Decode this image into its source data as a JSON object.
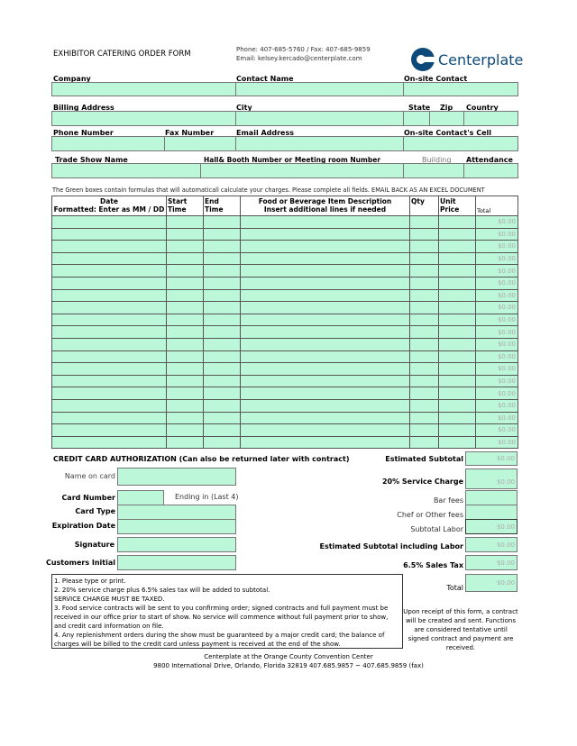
{
  "header": {
    "title": "EXHIBITOR CATERING ORDER FORM",
    "phone": "Phone: 407-685-5760 / Fax: 407-685-9859",
    "email": "Email: kelsey.kercado@centerplate.com",
    "logo_text": "Centerplate",
    "logo_color": "#0d4a7a"
  },
  "fields": {
    "company": "Company",
    "contact_name": "Contact Name",
    "onsite_contact": "On-site Contact",
    "billing_address": "Billing Address",
    "city": "City",
    "state": "State",
    "zip": "Zip",
    "country": "Country",
    "phone": "Phone Number",
    "fax": "Fax Number",
    "email": "Email Address",
    "onsite_cell": "On-site Contact's Cell",
    "trade_show": "Trade Show Name",
    "hall_booth": "Hall& Booth Number or Meeting room Number",
    "building": "Building",
    "attendance": "Attendance"
  },
  "instruction": "The Green boxes contain formulas that will automaticall calculate your charges.  Please complete all fields.  EMAIL BACK AS AN EXCEL DOCUMENT",
  "table": {
    "headers": {
      "date": "Date",
      "date_sub": "Formatted: Enter as MM / DD",
      "start": "Start Time",
      "end": "End Time",
      "desc": "Food or Beverage Item Description",
      "desc_sub": "Insert additional lines if needed",
      "qty": "Qty",
      "unit": "Unit Price",
      "total": "Total"
    },
    "row_totals": [
      "$0.00",
      "$0.00",
      "$0.00",
      "$0.00",
      "$0.00",
      "$0.00",
      "$0.00",
      "$0.00",
      "$0.00",
      "$0.00",
      "$0.00",
      "$0.00",
      "$0.00",
      "$0.00",
      "$0.00",
      "$0.00",
      "$0.00",
      "$0.00",
      "$0.00"
    ]
  },
  "credit": {
    "title": "CREDIT CARD AUTHORIZATION (Can also be returned later with contract)",
    "name_on_card": "Name on card",
    "card_number": "Card Number",
    "ending": "Ending in (Last 4)",
    "card_type": "Card Type",
    "expiration": "Expiration Date",
    "signature": "Signature",
    "initial": "Customers Initial"
  },
  "totals": {
    "est_subtotal": {
      "label": "Estimated Subtotal",
      "value": "$0.00"
    },
    "service": {
      "label": "20% Service Charge",
      "value": "$0.00"
    },
    "bar": {
      "label": "Bar fees"
    },
    "chef": {
      "label": "Chef  or Other fees"
    },
    "labor": {
      "label": "Subtotal  Labor",
      "value": "$0.00"
    },
    "incl_labor": {
      "label": "Estimated Subtotal including Labor",
      "value": "$0.00"
    },
    "tax": {
      "label": "6.5% Sales Tax",
      "value": "$0.00"
    },
    "total": {
      "label": "Total",
      "value": "$0.00"
    }
  },
  "notes": [
    "1.  Please type or print.",
    "2.  20% service charge plus 6.5% sales tax will be added to subtotal.",
    "SERVICE CHARGE MUST BE TAXED.",
    "3.  Food service contracts will be sent to you confirming order; signed contracts and full payment must be received in our office prior to start of show.  No service will commence without full payment prior to show, and credit card information on file.",
    "4.  Any replenishment orders during the show must be guaranteed by a major credit card; the balance of charges will be billed to the credit card unless payment is received at the end of the show."
  ],
  "receipt_note": "Upon receipt of this form, a contract will be created and sent.  Functions are considered tentative until signed contract and payment are received.",
  "footer": {
    "line1": "Centerplate at the Orange County Convention Center",
    "line2": "9800 International Drive, Orlando, Florida  32819  407.685.9857 ~ 407.685.9859 (fax)"
  }
}
